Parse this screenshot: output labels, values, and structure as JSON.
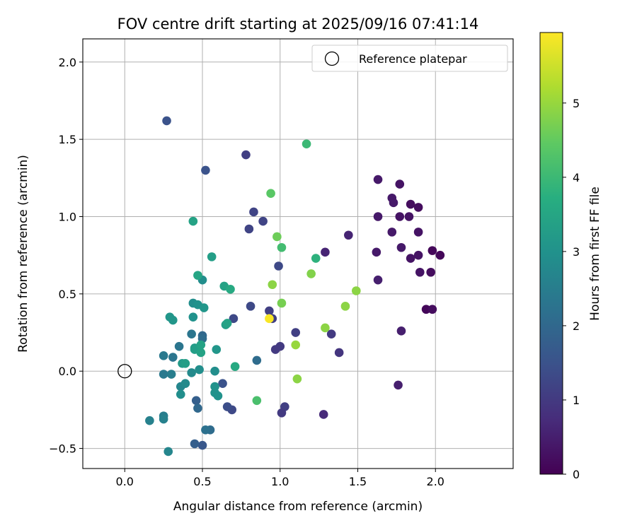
{
  "chart_data": {
    "type": "scatter",
    "title": "FOV centre drift starting at 2025/09/16 07:41:14",
    "xlabel": "Angular distance from reference (arcmin)",
    "ylabel": "Rotation from reference (arcmin)",
    "xlim": [
      -0.27,
      2.5
    ],
    "ylim": [
      -0.63,
      2.15
    ],
    "xticks": [
      0.0,
      0.5,
      1.0,
      1.5,
      2.0
    ],
    "xtick_labels": [
      "0.0",
      "0.5",
      "1.0",
      "1.5",
      "2.0"
    ],
    "yticks": [
      -0.5,
      0.0,
      0.5,
      1.0,
      1.5,
      2.0
    ],
    "ytick_labels": [
      "−0.5",
      "0.0",
      "0.5",
      "1.0",
      "1.5",
      "2.0"
    ],
    "grid": true,
    "legend": {
      "placement": "top-right",
      "entries": [
        "Reference platepar"
      ]
    },
    "reference_point": {
      "x": 0.0,
      "y": 0.0,
      "label": "Reference platepar"
    },
    "colorbar": {
      "label": "Hours from first FF file",
      "range": [
        0,
        5.95
      ],
      "ticks": [
        0,
        1,
        2,
        3,
        4,
        5
      ],
      "tick_labels": [
        "0",
        "1",
        "2",
        "3",
        "4",
        "5"
      ],
      "colormap": "viridis"
    },
    "points": [
      {
        "x": 1.98,
        "y": 0.78,
        "c": 0.1
      },
      {
        "x": 2.03,
        "y": 0.75,
        "c": 0.1
      },
      {
        "x": 1.94,
        "y": 0.4,
        "c": 0.1
      },
      {
        "x": 1.98,
        "y": 0.4,
        "c": 0.2
      },
      {
        "x": 1.97,
        "y": 0.64,
        "c": 0.2
      },
      {
        "x": 1.9,
        "y": 0.64,
        "c": 0.3
      },
      {
        "x": 1.89,
        "y": 0.75,
        "c": 0.3
      },
      {
        "x": 1.84,
        "y": 0.73,
        "c": 0.3
      },
      {
        "x": 1.78,
        "y": 0.8,
        "c": 0.4
      },
      {
        "x": 1.89,
        "y": 0.9,
        "c": 0.3
      },
      {
        "x": 1.89,
        "y": 1.06,
        "c": 0.2
      },
      {
        "x": 1.84,
        "y": 1.08,
        "c": 0.2
      },
      {
        "x": 1.83,
        "y": 1.0,
        "c": 0.3
      },
      {
        "x": 1.77,
        "y": 1.0,
        "c": 0.3
      },
      {
        "x": 1.77,
        "y": 1.21,
        "c": 0.3
      },
      {
        "x": 1.72,
        "y": 1.12,
        "c": 0.4
      },
      {
        "x": 1.73,
        "y": 1.09,
        "c": 0.4
      },
      {
        "x": 1.72,
        "y": 0.9,
        "c": 0.4
      },
      {
        "x": 1.63,
        "y": 1.0,
        "c": 0.4
      },
      {
        "x": 1.63,
        "y": 1.24,
        "c": 0.4
      },
      {
        "x": 1.62,
        "y": 0.77,
        "c": 0.4
      },
      {
        "x": 1.63,
        "y": 0.59,
        "c": 0.5
      },
      {
        "x": 1.78,
        "y": 0.26,
        "c": 0.5
      },
      {
        "x": 1.76,
        "y": -0.09,
        "c": 0.5
      },
      {
        "x": 1.44,
        "y": 0.88,
        "c": 0.6
      },
      {
        "x": 1.29,
        "y": 0.77,
        "c": 0.6
      },
      {
        "x": 1.28,
        "y": -0.28,
        "c": 0.7
      },
      {
        "x": 1.38,
        "y": 0.12,
        "c": 0.9
      },
      {
        "x": 1.33,
        "y": 0.24,
        "c": 1.0
      },
      {
        "x": 1.1,
        "y": 0.25,
        "c": 1.1
      },
      {
        "x": 1.03,
        "y": -0.23,
        "c": 1.1
      },
      {
        "x": 1.01,
        "y": -0.27,
        "c": 1.0
      },
      {
        "x": 1.0,
        "y": 0.16,
        "c": 1.0
      },
      {
        "x": 0.97,
        "y": 0.14,
        "c": 1.0
      },
      {
        "x": 0.95,
        "y": 0.34,
        "c": 1.1
      },
      {
        "x": 0.93,
        "y": 0.39,
        "c": 1.1
      },
      {
        "x": 0.99,
        "y": 0.68,
        "c": 1.3
      },
      {
        "x": 0.89,
        "y": 0.97,
        "c": 1.2
      },
      {
        "x": 0.83,
        "y": 1.03,
        "c": 1.2
      },
      {
        "x": 0.8,
        "y": 0.92,
        "c": 1.2
      },
      {
        "x": 0.78,
        "y": 1.4,
        "c": 1.1
      },
      {
        "x": 0.81,
        "y": 0.42,
        "c": 1.3
      },
      {
        "x": 0.7,
        "y": 0.34,
        "c": 1.3
      },
      {
        "x": 0.69,
        "y": -0.25,
        "c": 1.3
      },
      {
        "x": 0.66,
        "y": -0.23,
        "c": 1.4
      },
      {
        "x": 0.63,
        "y": -0.08,
        "c": 1.5
      },
      {
        "x": 0.52,
        "y": 1.3,
        "c": 1.5
      },
      {
        "x": 0.27,
        "y": 1.62,
        "c": 1.5
      },
      {
        "x": 0.5,
        "y": -0.48,
        "c": 1.6
      },
      {
        "x": 0.45,
        "y": -0.47,
        "c": 1.8
      },
      {
        "x": 0.46,
        "y": -0.19,
        "c": 1.8
      },
      {
        "x": 0.47,
        "y": -0.24,
        "c": 2.0
      },
      {
        "x": 0.55,
        "y": -0.38,
        "c": 2.1
      },
      {
        "x": 0.52,
        "y": -0.38,
        "c": 2.2
      },
      {
        "x": 0.85,
        "y": 0.07,
        "c": 2.1
      },
      {
        "x": 0.5,
        "y": 0.23,
        "c": 2.0
      },
      {
        "x": 0.5,
        "y": 0.21,
        "c": 2.1
      },
      {
        "x": 0.43,
        "y": 0.24,
        "c": 2.3
      },
      {
        "x": 0.35,
        "y": 0.16,
        "c": 2.3
      },
      {
        "x": 0.31,
        "y": 0.09,
        "c": 2.3
      },
      {
        "x": 0.25,
        "y": 0.1,
        "c": 2.4
      },
      {
        "x": 0.25,
        "y": -0.02,
        "c": 2.4
      },
      {
        "x": 0.3,
        "y": -0.02,
        "c": 2.5
      },
      {
        "x": 0.25,
        "y": -0.29,
        "c": 2.5
      },
      {
        "x": 0.25,
        "y": -0.31,
        "c": 2.6
      },
      {
        "x": 0.16,
        "y": -0.32,
        "c": 2.6
      },
      {
        "x": 0.28,
        "y": -0.52,
        "c": 2.7
      },
      {
        "x": 0.36,
        "y": -0.1,
        "c": 2.7
      },
      {
        "x": 0.39,
        "y": -0.08,
        "c": 2.8
      },
      {
        "x": 0.36,
        "y": -0.15,
        "c": 2.9
      },
      {
        "x": 0.43,
        "y": -0.01,
        "c": 2.8
      },
      {
        "x": 0.48,
        "y": 0.01,
        "c": 2.9
      },
      {
        "x": 0.58,
        "y": 0.0,
        "c": 2.9
      },
      {
        "x": 0.58,
        "y": -0.1,
        "c": 3.0
      },
      {
        "x": 0.58,
        "y": -0.14,
        "c": 3.0
      },
      {
        "x": 0.6,
        "y": -0.16,
        "c": 3.0
      },
      {
        "x": 0.59,
        "y": 0.14,
        "c": 3.1
      },
      {
        "x": 0.5,
        "y": 0.59,
        "c": 2.9
      },
      {
        "x": 0.44,
        "y": 0.44,
        "c": 2.9
      },
      {
        "x": 0.47,
        "y": 0.43,
        "c": 3.0
      },
      {
        "x": 0.51,
        "y": 0.41,
        "c": 3.1
      },
      {
        "x": 0.44,
        "y": 0.35,
        "c": 3.0
      },
      {
        "x": 0.29,
        "y": 0.35,
        "c": 3.1
      },
      {
        "x": 0.31,
        "y": 0.33,
        "c": 3.1
      },
      {
        "x": 0.37,
        "y": 0.05,
        "c": 3.2
      },
      {
        "x": 0.39,
        "y": 0.05,
        "c": 3.3
      },
      {
        "x": 0.45,
        "y": 0.15,
        "c": 3.2
      },
      {
        "x": 0.45,
        "y": 0.14,
        "c": 3.3
      },
      {
        "x": 0.49,
        "y": 0.12,
        "c": 3.4
      },
      {
        "x": 0.49,
        "y": 0.17,
        "c": 3.4
      },
      {
        "x": 0.65,
        "y": 0.3,
        "c": 3.3
      },
      {
        "x": 0.66,
        "y": 0.31,
        "c": 3.4
      },
      {
        "x": 0.64,
        "y": 0.55,
        "c": 3.4
      },
      {
        "x": 0.56,
        "y": 0.74,
        "c": 3.3
      },
      {
        "x": 0.44,
        "y": 0.97,
        "c": 3.4
      },
      {
        "x": 0.47,
        "y": 0.62,
        "c": 3.5
      },
      {
        "x": 0.68,
        "y": 0.53,
        "c": 3.6
      },
      {
        "x": 0.71,
        "y": 0.03,
        "c": 3.6
      },
      {
        "x": 1.23,
        "y": 0.73,
        "c": 3.8
      },
      {
        "x": 1.17,
        "y": 1.47,
        "c": 4.0
      },
      {
        "x": 1.01,
        "y": 0.8,
        "c": 4.1
      },
      {
        "x": 0.85,
        "y": -0.19,
        "c": 4.2
      },
      {
        "x": 0.94,
        "y": 1.15,
        "c": 4.4
      },
      {
        "x": 0.98,
        "y": 0.87,
        "c": 4.6
      },
      {
        "x": 1.01,
        "y": 0.44,
        "c": 4.7
      },
      {
        "x": 1.2,
        "y": 0.63,
        "c": 4.8
      },
      {
        "x": 0.95,
        "y": 0.56,
        "c": 4.9
      },
      {
        "x": 1.42,
        "y": 0.42,
        "c": 4.9
      },
      {
        "x": 1.49,
        "y": 0.52,
        "c": 4.9
      },
      {
        "x": 1.29,
        "y": 0.28,
        "c": 4.9
      },
      {
        "x": 1.1,
        "y": 0.17,
        "c": 5.0
      },
      {
        "x": 1.11,
        "y": -0.05,
        "c": 4.9
      },
      {
        "x": 0.93,
        "y": 0.34,
        "c": 5.9
      }
    ]
  }
}
